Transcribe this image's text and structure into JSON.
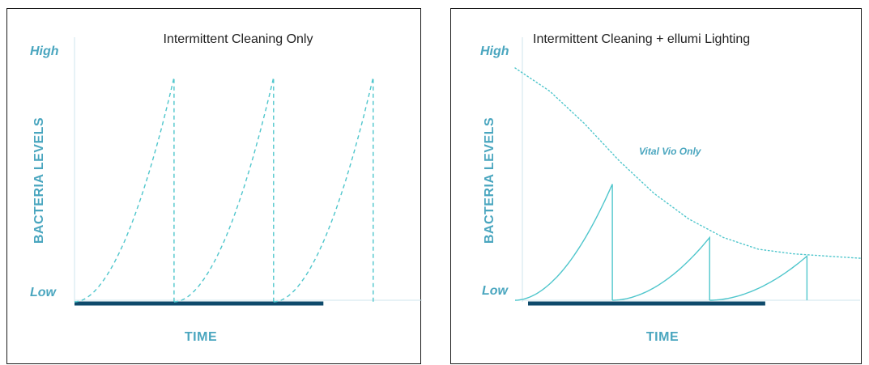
{
  "chart_data": [
    {
      "type": "line",
      "title": "Intermittent Cleaning Only",
      "xlabel": "TIME",
      "ylabel": "BACTERIA LEVELS",
      "y_ticks": [
        "High",
        "Low"
      ],
      "x_range": [
        0,
        1
      ],
      "y_range": [
        0,
        1
      ],
      "colors": {
        "curve": "#4fc6cc",
        "baseline": "#0e4a6b",
        "axis": "#cfe6ec"
      },
      "series": [
        {
          "style": "dashed",
          "cycles": [
            {
              "x_start": 0.0,
              "x_end": 0.28,
              "y_peak": 0.95
            },
            {
              "x_start": 0.28,
              "x_end": 0.56,
              "y_peak": 0.95
            },
            {
              "x_start": 0.56,
              "x_end": 0.84,
              "y_peak": 0.95
            }
          ]
        }
      ],
      "baseline_x_end": 0.7
    },
    {
      "type": "line",
      "title": "Intermittent Cleaning + ellumi Lighting",
      "xlabel": "TIME",
      "ylabel": "BACTERIA LEVELS",
      "y_ticks": [
        "High",
        "Low"
      ],
      "x_range": [
        0,
        1
      ],
      "y_range": [
        0,
        1
      ],
      "colors": {
        "curve": "#4fc6cc",
        "baseline": "#0e4a6b",
        "axis": "#cfe6ec"
      },
      "annotation": "Vital Vio Only",
      "series": [
        {
          "style": "solid",
          "cycles": [
            {
              "x_start": 0.0,
              "x_end": 0.28,
              "y_peak": 0.5
            },
            {
              "x_start": 0.28,
              "x_end": 0.56,
              "y_peak": 0.27
            },
            {
              "x_start": 0.56,
              "x_end": 0.84,
              "y_peak": 0.19
            }
          ]
        },
        {
          "name": "Vital Vio Only",
          "style": "dotted",
          "x": [
            0.0,
            0.1,
            0.2,
            0.3,
            0.4,
            0.5,
            0.6,
            0.7,
            0.8,
            0.9,
            1.0
          ],
          "y": [
            1.0,
            0.9,
            0.76,
            0.6,
            0.46,
            0.35,
            0.27,
            0.22,
            0.2,
            0.19,
            0.18
          ]
        }
      ],
      "baseline_x_end": 0.72
    }
  ]
}
